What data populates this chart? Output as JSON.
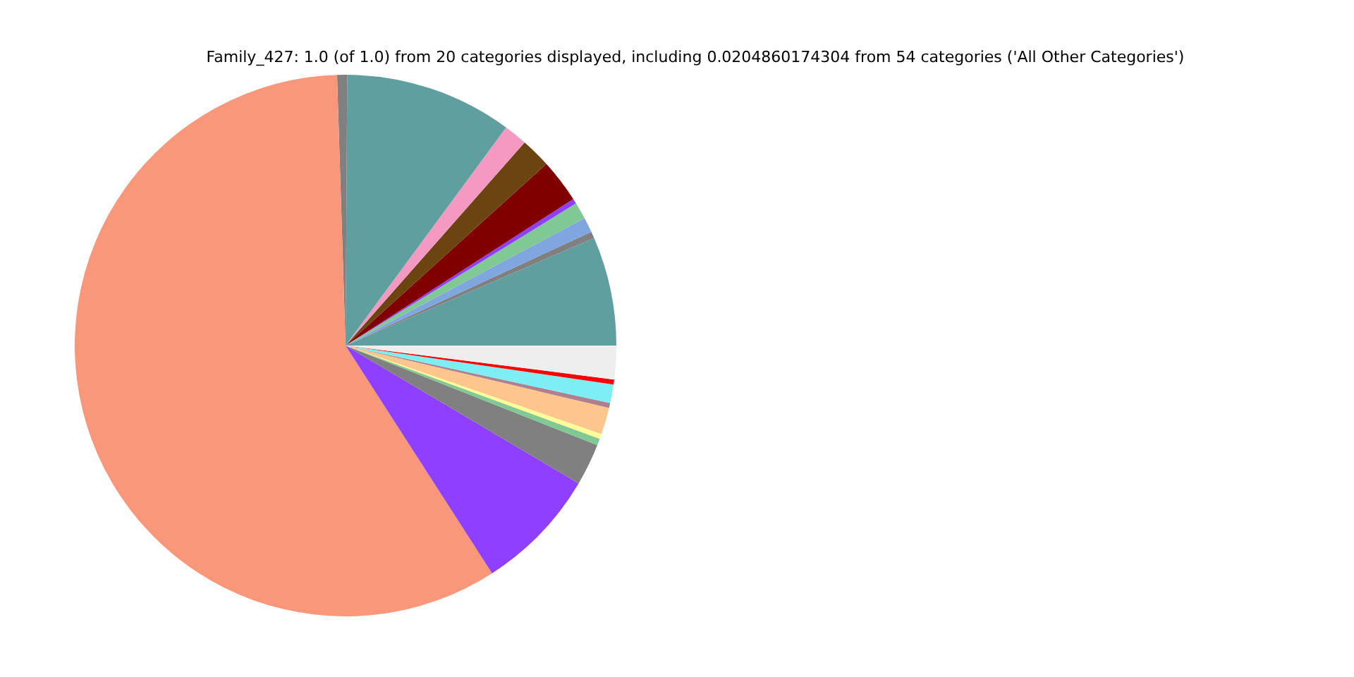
{
  "chart_data": {
    "type": "pie",
    "title": "Family_427: 1.0 (of 1.0) from 20 categories displayed, including 0.0204860174304 from 54 categories ('All Other Categories')",
    "categories": [
      null,
      null,
      null,
      null,
      null,
      null,
      null,
      null,
      null,
      null,
      null,
      null,
      null,
      null,
      null,
      null,
      null,
      null,
      null,
      null
    ],
    "values": [
      6.5,
      0.4,
      0.9,
      1.0,
      0.3,
      2.6,
      1.8,
      1.4,
      10.0,
      0.6,
      58.6,
      7.4,
      2.5,
      0.4,
      0.3,
      1.6,
      0.3,
      1.1,
      0.3,
      2.0
    ],
    "colors": [
      "#5f9f9f",
      "#808080",
      "#7fa6de",
      "#80c894",
      "#8f3fff",
      "#800000",
      "#6b4410",
      "#f49ac2",
      "#5f9f9f",
      "#808080",
      "#f8977a",
      "#8f3fff",
      "#808080",
      "#80c894",
      "#ffff99",
      "#fdc68c",
      "#b08090",
      "#7ceef4",
      "#ff0000",
      "#eeeeee"
    ],
    "legend": false
  }
}
